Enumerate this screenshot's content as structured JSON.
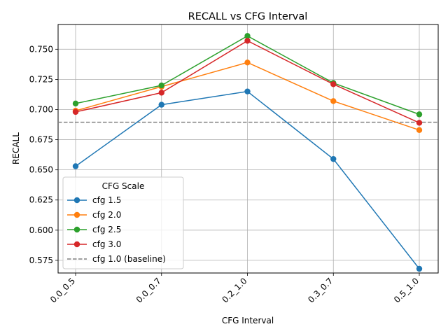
{
  "chart_data": {
    "type": "line",
    "title": "RECALL vs CFG Interval",
    "xlabel": "CFG Interval",
    "ylabel": "RECALL",
    "categories": [
      "0.0_0.5",
      "0.0_0.7",
      "0.2_1.0",
      "0.3_0.7",
      "0.5_1.0"
    ],
    "ylim": [
      0.5645,
      0.7705
    ],
    "yticks": [
      0.575,
      0.6,
      0.625,
      0.65,
      0.675,
      0.7,
      0.725,
      0.75
    ],
    "ytick_labels": [
      "0.575",
      "0.600",
      "0.625",
      "0.650",
      "0.675",
      "0.700",
      "0.725",
      "0.750"
    ],
    "grid": true,
    "legend": {
      "title": "CFG Scale",
      "placement": "lower-left"
    },
    "series": [
      {
        "name": "cfg 1.5",
        "color": "#1f77b4",
        "values": [
          0.653,
          0.704,
          0.715,
          0.659,
          0.568
        ]
      },
      {
        "name": "cfg 2.0",
        "color": "#ff7f0e",
        "values": [
          0.699,
          0.719,
          0.739,
          0.707,
          0.683
        ]
      },
      {
        "name": "cfg 2.5",
        "color": "#2ca02c",
        "values": [
          0.705,
          0.72,
          0.761,
          0.722,
          0.696
        ]
      },
      {
        "name": "cfg 3.0",
        "color": "#d62728",
        "values": [
          0.698,
          0.714,
          0.757,
          0.721,
          0.689
        ]
      }
    ],
    "baseline": {
      "name": "cfg 1.0 (baseline)",
      "value": 0.6895,
      "color": "#808080"
    }
  }
}
